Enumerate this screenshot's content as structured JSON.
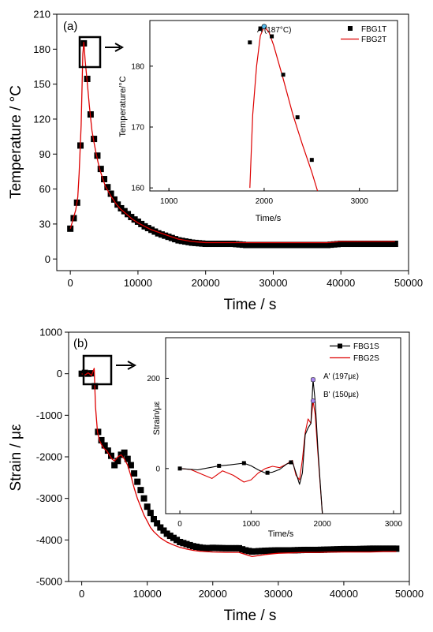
{
  "colors": {
    "fbg1": "#000000",
    "fbg2": "#dd0000",
    "pointA": "#55bbee",
    "pointPrime": "#aa88ee"
  },
  "chart_data": [
    {
      "panel": "(a)",
      "type": "line",
      "xlabel": "Time / s",
      "ylabel": "Temperature / °C",
      "xlim": [
        -2000,
        50000
      ],
      "ylim": [
        -10,
        210
      ],
      "xticks": [
        0,
        10000,
        20000,
        30000,
        40000,
        50000
      ],
      "yticks": [
        0,
        30,
        60,
        90,
        120,
        150,
        180,
        210
      ],
      "legend_position": "top-right (inset)",
      "series": [
        {
          "name": "FBG1T",
          "style": "square-markers",
          "x": [
            0,
            400,
            800,
            1100,
            1300,
            1600,
            1850,
            2000,
            2200,
            2400,
            2600,
            2800,
            3000,
            3200,
            3500,
            3800,
            4100,
            4400,
            4800,
            5200,
            6000,
            6800,
            7400,
            8000,
            8600,
            9200,
            10000,
            11000,
            12000,
            13000,
            14000,
            15000,
            16000,
            17000,
            18000,
            20000,
            22000,
            24000,
            26000,
            28000,
            30000,
            32000,
            34000,
            36000,
            38000,
            40000,
            42000,
            44000,
            46000,
            48000
          ],
          "y": [
            26,
            33,
            41,
            52,
            72,
            110,
            172,
            185,
            172,
            162,
            147,
            135,
            124,
            112,
            103,
            94,
            86,
            79,
            72,
            65,
            56,
            48,
            44,
            41,
            38,
            35,
            32,
            28,
            25,
            22,
            20,
            18,
            16,
            15,
            14,
            13,
            13,
            13,
            12,
            12,
            12,
            12,
            12,
            12,
            12,
            13,
            13,
            13,
            13,
            13
          ]
        },
        {
          "name": "FBG2T",
          "style": "line",
          "x": [
            0,
            400,
            800,
            1100,
            1300,
            1600,
            1850,
            2000,
            2200,
            2400,
            2600,
            2800,
            3000,
            3200,
            3500,
            3800,
            4100,
            4400,
            4800,
            5200,
            6000,
            6800,
            7400,
            8000,
            8600,
            9200,
            10000,
            11000,
            12000,
            13000,
            14000,
            15000,
            16000,
            17000,
            18000,
            20000,
            22000,
            24000,
            26000,
            28000,
            30000,
            32000,
            34000,
            36000,
            38000,
            40000,
            42000,
            44000,
            46000,
            48000
          ],
          "y": [
            26,
            34,
            42,
            53,
            73,
            115,
            176,
            186,
            170,
            158,
            145,
            132,
            121,
            110,
            100,
            91,
            83,
            76,
            69,
            62,
            54,
            47,
            43,
            40,
            37,
            34,
            31,
            28,
            25,
            23,
            21,
            19,
            17,
            16,
            15,
            14,
            14,
            14,
            14,
            14,
            14,
            14,
            14,
            14,
            14,
            15,
            15,
            15,
            15,
            15
          ]
        }
      ],
      "inset": {
        "xlabel": "Time/s",
        "ylabel": "Temperature/°C",
        "xlim": [
          800,
          3400
        ],
        "ylim": [
          159.5,
          187.5
        ],
        "xticks": [
          1000,
          2000,
          3000
        ],
        "yticks": [
          160,
          170,
          180
        ],
        "annotation": "A (187°C)",
        "peak": {
          "x": 2000,
          "y": 186.5
        },
        "series": [
          {
            "name": "FBG1T",
            "x": [
              1850,
              1960,
              2000,
              2080,
              2200,
              2350,
              2500
            ],
            "y": [
              183.9,
              186.2,
              186.5,
              184.9,
              178.6,
              171.6,
              164.6
            ]
          },
          {
            "name": "FBG2T",
            "x": [
              1850,
              1880,
              1920,
              1960,
              2000,
              2050,
              2100,
              2200,
              2300,
              2400,
              2500,
              2560
            ],
            "y": [
              160,
              172,
              180,
              185,
              186.5,
              185.6,
              183.4,
              177.9,
              172.1,
              167.2,
              162.6,
              159.5
            ]
          }
        ]
      }
    },
    {
      "panel": "(b)",
      "type": "line",
      "xlabel": "Time / s",
      "ylabel": "Strain / με",
      "xlim": [
        -2000,
        50000
      ],
      "ylim": [
        -5000,
        1000
      ],
      "xticks": [
        0,
        10000,
        20000,
        30000,
        40000,
        50000
      ],
      "yticks": [
        -5000,
        -4000,
        -3000,
        -2000,
        -1000,
        0,
        1000
      ],
      "legend_position": "top-right (inset)",
      "series": [
        {
          "name": "FBG1S",
          "style": "square-markers",
          "x": [
            0,
            500,
            1000,
            1500,
            1900,
            2100,
            2400,
            2700,
            3000,
            3400,
            3800,
            4200,
            4600,
            5000,
            5500,
            6000,
            6500,
            7000,
            7500,
            8000,
            8500,
            9000,
            9500,
            10000,
            10500,
            11000,
            12000,
            13000,
            14000,
            15000,
            16000,
            17000,
            18000,
            19000,
            20000,
            22000,
            24000,
            25000,
            26000,
            28000,
            30000,
            32000,
            34000,
            36000,
            38000,
            40000,
            42000,
            44000,
            46000,
            48000
          ],
          "y": [
            0,
            20,
            0,
            10,
            150,
            -750,
            -1350,
            -1500,
            -1600,
            -1700,
            -1800,
            -1900,
            -2000,
            -2200,
            -2100,
            -1950,
            -1900,
            -2050,
            -2200,
            -2400,
            -2600,
            -2800,
            -3000,
            -3200,
            -3350,
            -3500,
            -3700,
            -3850,
            -3950,
            -4050,
            -4100,
            -4150,
            -4180,
            -4200,
            -4190,
            -4200,
            -4200,
            -4250,
            -4280,
            -4260,
            -4250,
            -4250,
            -4240,
            -4240,
            -4230,
            -4220,
            -4220,
            -4210,
            -4210,
            -4210
          ]
        },
        {
          "name": "FBG2S",
          "style": "line",
          "x": [
            0,
            500,
            1000,
            1500,
            1900,
            2100,
            2400,
            2700,
            3000,
            3400,
            3800,
            4200,
            4600,
            5000,
            5500,
            6000,
            6500,
            7000,
            7500,
            8000,
            8500,
            9000,
            9500,
            10000,
            10500,
            11000,
            12000,
            13000,
            14000,
            15000,
            16000,
            17000,
            18000,
            19000,
            20000,
            22000,
            24000,
            25000,
            26000,
            28000,
            30000,
            32000,
            34000,
            36000,
            38000,
            40000,
            42000,
            44000,
            46000,
            48000
          ],
          "y": [
            0,
            -30,
            20,
            -40,
            130,
            -800,
            -1400,
            -1600,
            -1700,
            -1800,
            -1850,
            -1950,
            -2050,
            -2100,
            -2000,
            -1950,
            -2050,
            -2200,
            -2450,
            -2750,
            -3000,
            -3200,
            -3400,
            -3550,
            -3700,
            -3800,
            -3950,
            -4050,
            -4120,
            -4180,
            -4220,
            -4250,
            -4270,
            -4280,
            -4290,
            -4300,
            -4300,
            -4350,
            -4400,
            -4350,
            -4320,
            -4310,
            -4300,
            -4300,
            -4290,
            -4290,
            -4290,
            -4290,
            -4280,
            -4280
          ]
        }
      ],
      "inset": {
        "xlabel": "Time/s",
        "ylabel": "Strain/με",
        "xlim": [
          -200,
          3100
        ],
        "ylim": [
          -100,
          290
        ],
        "xticks": [
          0,
          1000,
          2000,
          3000
        ],
        "yticks": [
          0,
          200
        ],
        "annotations": [
          "A' (197με)",
          "B' (150με)"
        ],
        "peaks": [
          {
            "x": 1870,
            "y": 197
          },
          {
            "x": 1870,
            "y": 150
          }
        ],
        "series": [
          {
            "name": "FBG1S",
            "x": [
              0,
              250,
              550,
              700,
              900,
              1000,
              1100,
              1200,
              1300,
              1400,
              1500,
              1580,
              1630,
              1680,
              1720,
              1760,
              1800,
              1840,
              1870,
              1900,
              1940,
              2000
            ],
            "y": [
              0,
              -3,
              6,
              8,
              12,
              6,
              -3,
              -10,
              -8,
              -2,
              10,
              15,
              -10,
              -35,
              -10,
              75,
              90,
              100,
              197,
              150,
              40,
              -100
            ],
            "markers_x": [
              0,
              550,
              900,
              1230,
              1560,
              1870
            ]
          },
          {
            "name": "FBG2S",
            "x": [
              0,
              150,
              300,
              450,
              600,
              750,
              900,
              1000,
              1100,
              1200,
              1300,
              1400,
              1500,
              1580,
              1630,
              1680,
              1720,
              1760,
              1800,
              1840,
              1870,
              1900,
              1940,
              2000
            ],
            "y": [
              0,
              -2,
              -12,
              -22,
              -5,
              -15,
              -30,
              -25,
              -10,
              0,
              5,
              2,
              10,
              18,
              -15,
              -25,
              20,
              80,
              110,
              100,
              150,
              120,
              30,
              -100
            ]
          }
        ]
      }
    }
  ]
}
